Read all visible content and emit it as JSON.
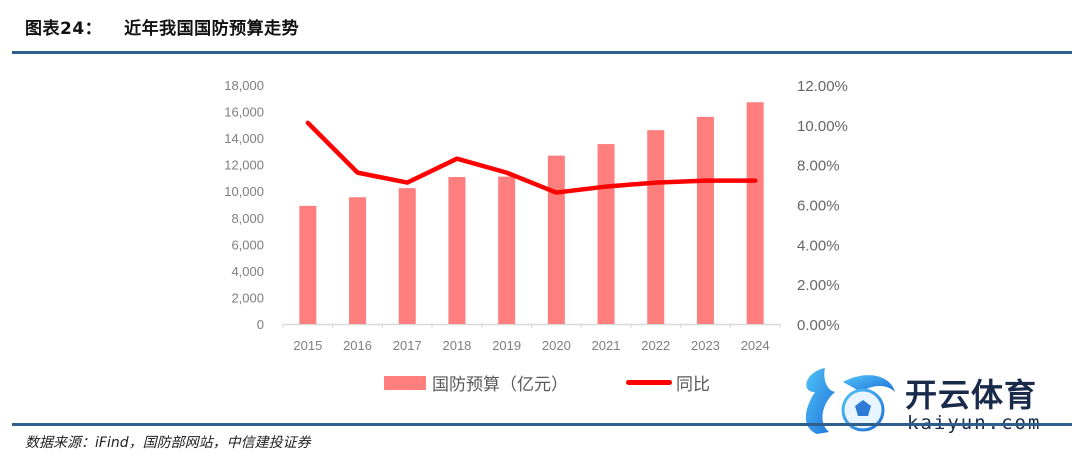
{
  "header": {
    "figure_label": "图表24：",
    "title": "近年我国国防预算走势"
  },
  "source": "数据来源：iFind，国防部网站，中信建投证券",
  "watermark": {
    "cn": "开云体育",
    "en": "kaiyun.com"
  },
  "legend": {
    "bar_label": "国防预算（亿元）",
    "line_label": "同比"
  },
  "colors": {
    "bar": "#ff7f7f",
    "line": "#ff0000",
    "rule": "#2f5d8c",
    "axis_text": "#7f7f7f"
  },
  "chart_data": {
    "type": "bar+line",
    "title": "近年我国国防预算走势",
    "categories": [
      "2015",
      "2016",
      "2017",
      "2018",
      "2019",
      "2020",
      "2021",
      "2022",
      "2023",
      "2024"
    ],
    "series": [
      {
        "name": "国防预算（亿元）",
        "type": "bar",
        "axis": "left",
        "values": [
          8900,
          9550,
          10230,
          11070,
          11100,
          12680,
          13550,
          14600,
          15600,
          16700
        ]
      },
      {
        "name": "同比",
        "type": "line",
        "axis": "right",
        "values": [
          10.1,
          7.6,
          7.1,
          8.3,
          7.6,
          6.6,
          6.9,
          7.1,
          7.2,
          7.2
        ]
      }
    ],
    "left_axis": {
      "range": [
        0,
        18000
      ],
      "ticks": [
        "0",
        "2,000",
        "4,000",
        "6,000",
        "8,000",
        "10,000",
        "12,000",
        "14,000",
        "16,000",
        "18,000"
      ]
    },
    "right_axis": {
      "range": [
        0,
        12
      ],
      "unit": "%",
      "ticks": [
        "0.00%",
        "2.00%",
        "4.00%",
        "6.00%",
        "8.00%",
        "10.00%",
        "12.00%"
      ]
    },
    "xlabel": "",
    "ylabel": "",
    "grid": false,
    "legend_position": "bottom"
  }
}
